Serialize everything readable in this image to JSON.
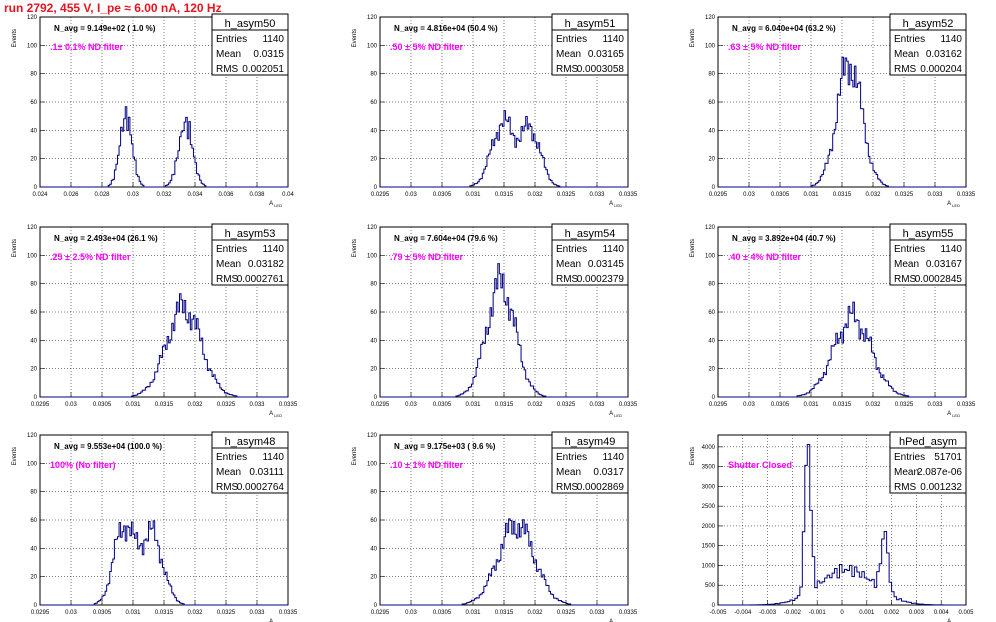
{
  "page_title": "run 2792,   455 V, I_pe ≈ 6.00 nA, 120 Hz",
  "colors": {
    "histogram": "#000080",
    "title": "#e8141f",
    "filter_label": "#ff00ff",
    "grid": "#000000"
  },
  "common": {
    "ylabel": "Events",
    "xlabel": "A",
    "xlabel_sub": "LED"
  },
  "chart_data": [
    {
      "type": "histogram",
      "name": "h_asym50",
      "stats": {
        "Entries": "1140",
        "Mean": "0.0315",
        "RMS": "0.002051"
      },
      "navg": "N_avg = 9.149e+02 ( 1.0 %)",
      "filter": ".1± 0.1% ND filter",
      "xlim": [
        0.024,
        0.04
      ],
      "ylim": [
        0,
        120
      ],
      "xticks": [
        0.024,
        0.026,
        0.028,
        0.03,
        0.032,
        0.034,
        0.036,
        0.038,
        0.04
      ],
      "xtick_labels": [
        "0.024",
        "0.026",
        "0.028",
        "0.03",
        "0.032",
        "0.034",
        "0.036",
        "0.038",
        "0.04"
      ],
      "yticks": [
        0,
        20,
        40,
        60,
        80,
        100,
        120
      ],
      "ytick_labels": [
        "0",
        "20",
        "40",
        "60",
        "80",
        "100",
        "120"
      ],
      "peaks": [
        {
          "mu": 0.02955,
          "sigma": 0.0004,
          "amp": 50
        },
        {
          "mu": 0.0334,
          "sigma": 0.00045,
          "amp": 45
        }
      ],
      "bin_width": 0.0001
    },
    {
      "type": "histogram",
      "name": "h_asym51",
      "stats": {
        "Entries": "1140",
        "Mean": "0.03165",
        "RMS": "0.0003058"
      },
      "navg": "N_avg = 4.816e+04 (50.4 %)",
      "filter": ".50 ± 5% ND filter",
      "xlim": [
        0.0295,
        0.0335
      ],
      "ylim": [
        0,
        120
      ],
      "xticks": [
        0.0295,
        0.03,
        0.0305,
        0.031,
        0.0315,
        0.032,
        0.0325,
        0.033,
        0.0335
      ],
      "xtick_labels": [
        "0.0295",
        "0.03",
        "0.0305",
        "0.031",
        "0.0315",
        "0.032",
        "0.0325",
        "0.033",
        "0.0335"
      ],
      "yticks": [
        0,
        20,
        40,
        60,
        80,
        100,
        120
      ],
      "ytick_labels": [
        "0",
        "20",
        "40",
        "60",
        "80",
        "100",
        "120"
      ],
      "peaks": [
        {
          "mu": 0.03148,
          "sigma": 0.00018,
          "amp": 45
        },
        {
          "mu": 0.03193,
          "sigma": 0.00016,
          "amp": 40
        }
      ],
      "bin_width": 2.5e-05
    },
    {
      "type": "histogram",
      "name": "h_asym52",
      "stats": {
        "Entries": "1140",
        "Mean": "0.03162",
        "RMS": "0.000204"
      },
      "navg": "N_avg = 6.040e+04 (63.2 %)",
      "filter": ".63 ± 5% ND filter",
      "xlim": [
        0.0295,
        0.0335
      ],
      "ylim": [
        0,
        120
      ],
      "xticks": [
        0.0295,
        0.03,
        0.0305,
        0.031,
        0.0315,
        0.032,
        0.0325,
        0.033,
        0.0335
      ],
      "xtick_labels": [
        "0.0295",
        "0.03",
        "0.0305",
        "0.031",
        "0.0315",
        "0.032",
        "0.0325",
        "0.033",
        "0.0335"
      ],
      "yticks": [
        0,
        20,
        40,
        60,
        80,
        100,
        120
      ],
      "ytick_labels": [
        "0",
        "20",
        "40",
        "60",
        "80",
        "100",
        "120"
      ],
      "peaks": [
        {
          "mu": 0.03162,
          "sigma": 0.0002,
          "amp": 88
        }
      ],
      "bin_width": 2.5e-05
    },
    {
      "type": "histogram",
      "name": "h_asym53",
      "stats": {
        "Entries": "1140",
        "Mean": "0.03182",
        "RMS": "0.0002761"
      },
      "navg": "N_avg = 2.493e+04 (26.1 %)",
      "filter": ".25 ± 2.5% ND filter",
      "xlim": [
        0.0295,
        0.0335
      ],
      "ylim": [
        0,
        120
      ],
      "xticks": [
        0.0295,
        0.03,
        0.0305,
        0.031,
        0.0315,
        0.032,
        0.0325,
        0.033,
        0.0335
      ],
      "xtick_labels": [
        "0.0295",
        "0.03",
        "0.0305",
        "0.031",
        "0.0315",
        "0.032",
        "0.0325",
        "0.033",
        "0.0335"
      ],
      "yticks": [
        0,
        20,
        40,
        60,
        80,
        100,
        120
      ],
      "ytick_labels": [
        "0",
        "20",
        "40",
        "60",
        "80",
        "100",
        "120"
      ],
      "peaks": [
        {
          "mu": 0.03182,
          "sigma": 0.00028,
          "amp": 63
        }
      ],
      "bin_width": 2.5e-05
    },
    {
      "type": "histogram",
      "name": "h_asym54",
      "stats": {
        "Entries": "1140",
        "Mean": "0.03145",
        "RMS": "0.0002379"
      },
      "navg": "N_avg = 7.604e+04 (79.6 %)",
      "filter": ".79 ± 5% ND filter",
      "xlim": [
        0.0295,
        0.0335
      ],
      "ylim": [
        0,
        120
      ],
      "xticks": [
        0.0295,
        0.03,
        0.0305,
        0.031,
        0.0315,
        0.032,
        0.0325,
        0.033,
        0.0335
      ],
      "xtick_labels": [
        "0.0295",
        "0.03",
        "0.0305",
        "0.031",
        "0.0315",
        "0.032",
        "0.0325",
        "0.033",
        "0.0335"
      ],
      "yticks": [
        0,
        20,
        40,
        60,
        80,
        100,
        120
      ],
      "ytick_labels": [
        "0",
        "20",
        "40",
        "60",
        "80",
        "100",
        "120"
      ],
      "peaks": [
        {
          "mu": 0.03145,
          "sigma": 0.00023,
          "amp": 80
        }
      ],
      "bin_width": 2.5e-05
    },
    {
      "type": "histogram",
      "name": "h_asym55",
      "stats": {
        "Entries": "1140",
        "Mean": "0.03167",
        "RMS": "0.0002845"
      },
      "navg": "N_avg = 3.892e+04 (40.7 %)",
      "filter": ".40 ± 4% ND filter",
      "xlim": [
        0.0295,
        0.0335
      ],
      "ylim": [
        0,
        120
      ],
      "xticks": [
        0.0295,
        0.03,
        0.0305,
        0.031,
        0.0315,
        0.032,
        0.0325,
        0.033,
        0.0335
      ],
      "xtick_labels": [
        "0.0295",
        "0.03",
        "0.0305",
        "0.031",
        "0.0315",
        "0.032",
        "0.0325",
        "0.033",
        "0.0335"
      ],
      "yticks": [
        0,
        20,
        40,
        60,
        80,
        100,
        120
      ],
      "ytick_labels": [
        "0",
        "20",
        "40",
        "60",
        "80",
        "100",
        "120"
      ],
      "peaks": [
        {
          "mu": 0.03167,
          "sigma": 0.0003,
          "amp": 56
        }
      ],
      "bin_width": 2.5e-05
    },
    {
      "type": "histogram",
      "name": "h_asym48",
      "stats": {
        "Entries": "1140",
        "Mean": "0.03111",
        "RMS": "0.0002764"
      },
      "navg": "N_avg = 9.553e+04 (100.0 %)",
      "filter": "100% (No filter)",
      "xlim": [
        0.0295,
        0.0335
      ],
      "ylim": [
        0,
        120
      ],
      "xticks": [
        0.0295,
        0.03,
        0.0305,
        0.031,
        0.0315,
        0.032,
        0.0325,
        0.033,
        0.0335
      ],
      "xtick_labels": [
        "0.0295",
        "0.03",
        "0.0305",
        "0.031",
        "0.0315",
        "0.032",
        "0.0325",
        "0.033",
        "0.0335"
      ],
      "yticks": [
        0,
        20,
        40,
        60,
        80,
        100,
        120
      ],
      "ytick_labels": [
        "0",
        "20",
        "40",
        "60",
        "80",
        "100",
        "120"
      ],
      "peaks": [
        {
          "mu": 0.03085,
          "sigma": 0.00016,
          "amp": 55
        },
        {
          "mu": 0.0313,
          "sigma": 0.00018,
          "amp": 50
        }
      ],
      "bin_width": 2.5e-05
    },
    {
      "type": "histogram",
      "name": "h_asym49",
      "stats": {
        "Entries": "1140",
        "Mean": "0.0317",
        "RMS": "0.0002869"
      },
      "navg": "N_avg = 9.175e+03 ( 9.6 %)",
      "filter": ".10 ± 1% ND filter",
      "xlim": [
        0.0295,
        0.0335
      ],
      "ylim": [
        0,
        120
      ],
      "xticks": [
        0.0295,
        0.03,
        0.0305,
        0.031,
        0.0315,
        0.032,
        0.0325,
        0.033,
        0.0335
      ],
      "xtick_labels": [
        "0.0295",
        "0.03",
        "0.0305",
        "0.031",
        "0.0315",
        "0.032",
        "0.0325",
        "0.033",
        "0.0335"
      ],
      "yticks": [
        0,
        20,
        40,
        60,
        80,
        100,
        120
      ],
      "ytick_labels": [
        "0",
        "20",
        "40",
        "60",
        "80",
        "100",
        "120"
      ],
      "peaks": [
        {
          "mu": 0.0317,
          "sigma": 0.00029,
          "amp": 57
        }
      ],
      "bin_width": 2.5e-05
    },
    {
      "type": "histogram",
      "name": "hPed_asym",
      "stats": {
        "Entries": "51701",
        "Mean": "2.087e-06",
        "RMS": "0.001232"
      },
      "navg": "",
      "filter": "Shutter Closed",
      "xlim": [
        -0.005,
        0.005
      ],
      "ylim": [
        0,
        4300
      ],
      "xticks": [
        -0.005,
        -0.004,
        -0.003,
        -0.002,
        -0.001,
        0,
        0.001,
        0.002,
        0.003,
        0.004,
        0.005
      ],
      "xtick_labels": [
        "-0.005",
        "-0.004",
        "-0.003",
        "-0.002",
        "-0.001",
        "0",
        "0.001",
        "0.002",
        "0.003",
        "0.004",
        "0.005"
      ],
      "yticks": [
        0,
        500,
        1000,
        1500,
        2000,
        2500,
        3000,
        3500,
        4000
      ],
      "ytick_labels": [
        "0",
        "500",
        "1000",
        "1500",
        "2000",
        "2500",
        "3000",
        "3500",
        "4000"
      ],
      "peaks": [
        {
          "mu": -0.00138,
          "sigma": 0.00012,
          "amp": 3900
        },
        {
          "mu": 0.00172,
          "sigma": 0.00014,
          "amp": 1500
        },
        {
          "mu": 0.0002,
          "sigma": 0.0011,
          "amp": 900
        }
      ],
      "bin_width": 0.0001
    }
  ]
}
